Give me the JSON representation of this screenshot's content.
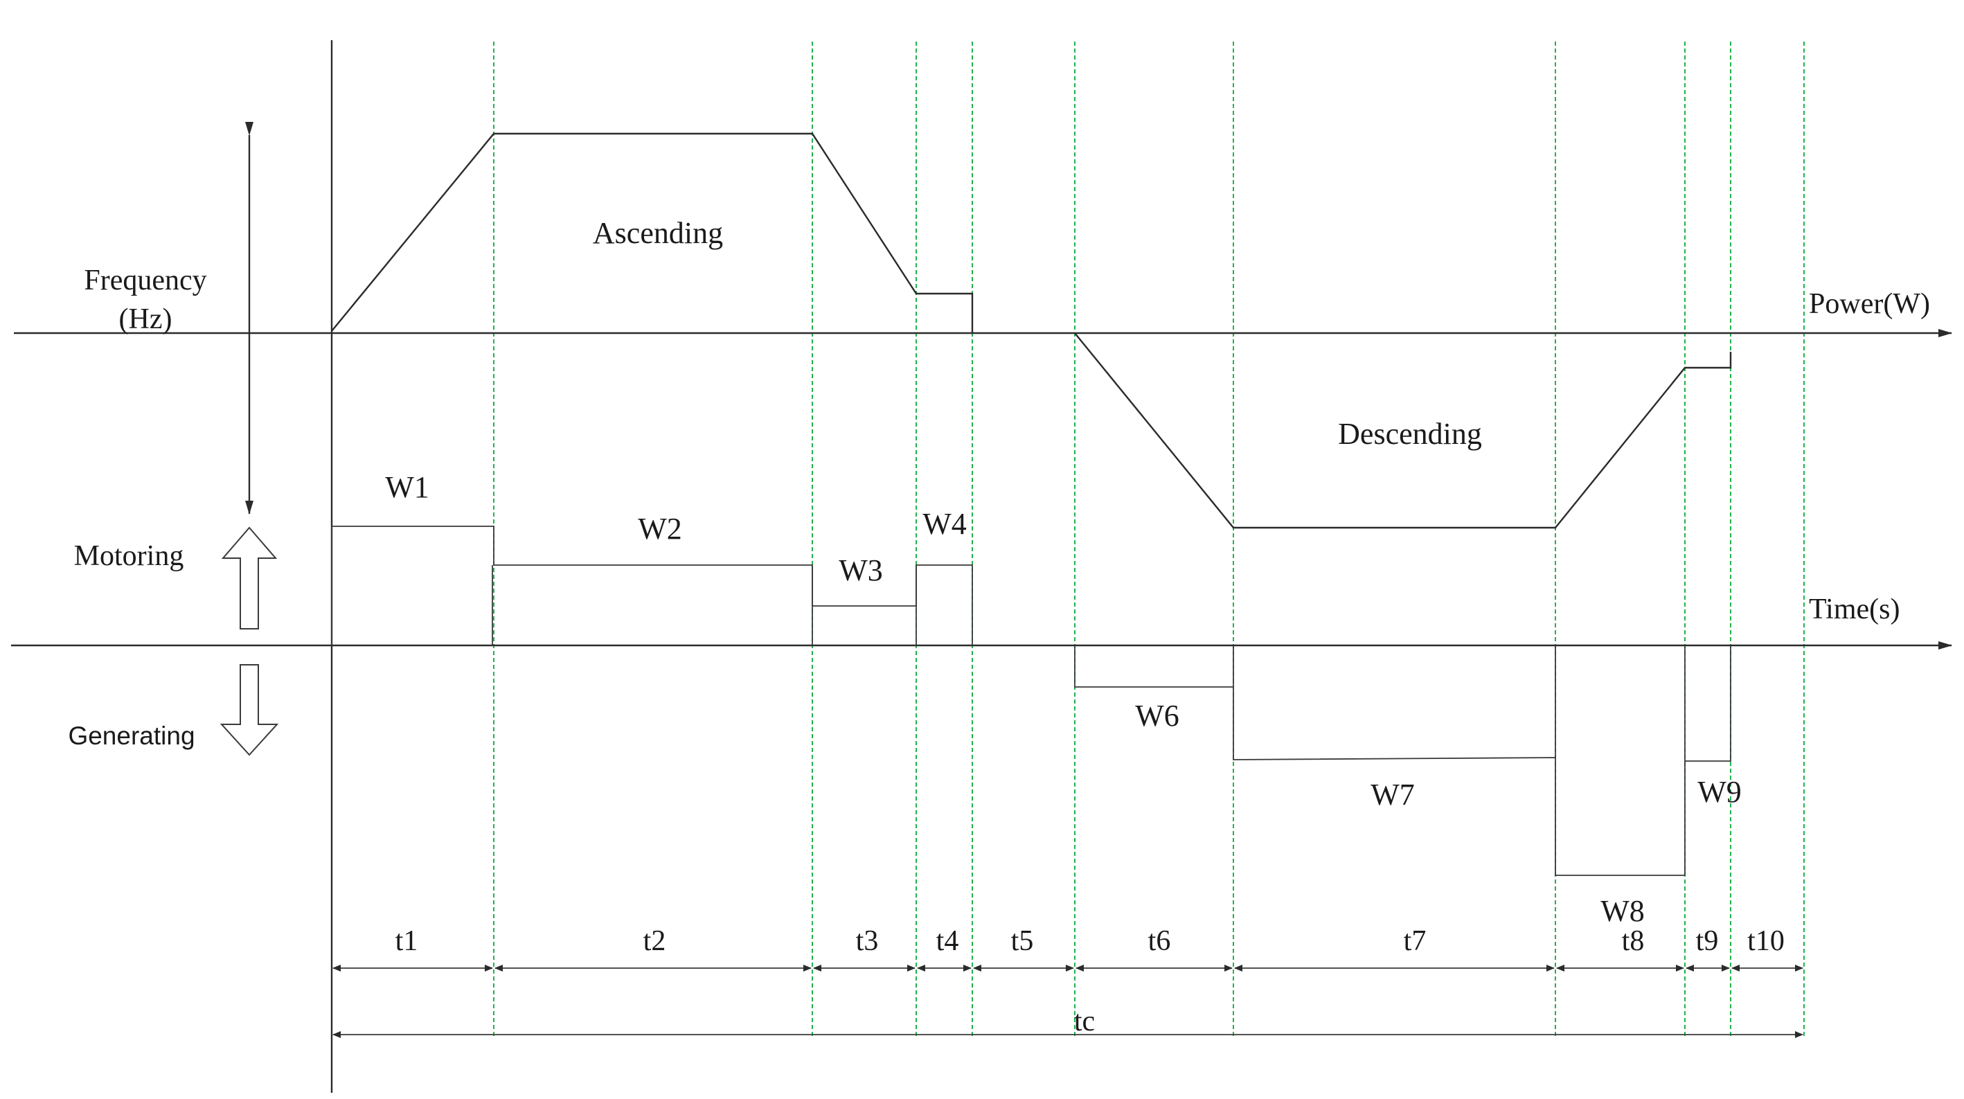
{
  "labels": {
    "frequency": "Frequency",
    "frequency_unit": "(Hz)",
    "power_axis": "Power(W)",
    "time_axis": "Time(s)",
    "motoring": "Motoring",
    "generating": "Generating",
    "ascending": "Ascending",
    "descending": "Descending"
  },
  "power_blocks": [
    "W1",
    "W2",
    "W3",
    "W4",
    "W6",
    "W7",
    "W8",
    "W9"
  ],
  "intervals": [
    "t1",
    "t2",
    "t3",
    "t4",
    "t5",
    "t6",
    "t7",
    "t8",
    "t9",
    "t10"
  ],
  "cycle": "tc"
}
